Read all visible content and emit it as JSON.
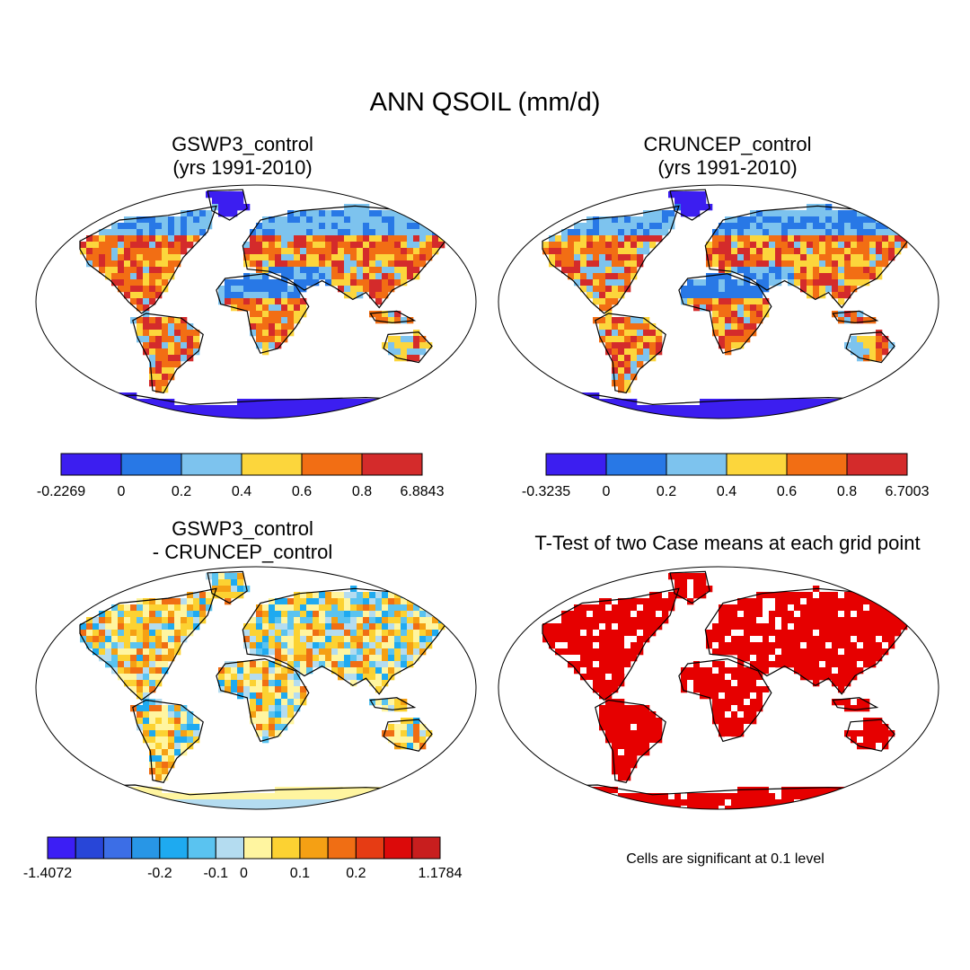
{
  "title": "ANN QSOIL (mm/d)",
  "panels": {
    "p1": {
      "title_line1": "GSWP3_control",
      "title_line2": "(yrs 1991-2010)"
    },
    "p2": {
      "title_line1": "CRUNCEP_control",
      "title_line2": "(yrs 1991-2010)"
    },
    "p3": {
      "title_line1": "GSWP3_control",
      "title_line2": "- CRUNCEP_control"
    },
    "p4": {
      "title_line1": "T-Test of two Case means at each grid point"
    }
  },
  "colorbars": {
    "cb1": {
      "colors": [
        "#3c1ef0",
        "#2878e6",
        "#7dc3ee",
        "#fcd63c",
        "#f26e14",
        "#d42b2b"
      ],
      "labels": [
        "-0.2269",
        "0",
        "0.2",
        "0.4",
        "0.6",
        "0.8",
        "6.8843"
      ]
    },
    "cb2": {
      "colors": [
        "#3c1ef0",
        "#2878e6",
        "#7dc3ee",
        "#fcd63c",
        "#f26e14",
        "#d42b2b"
      ],
      "labels": [
        "-0.3235",
        "0",
        "0.2",
        "0.4",
        "0.6",
        "0.8",
        "6.7003"
      ]
    },
    "cb3": {
      "colors": [
        "#3c1ef5",
        "#2846d8",
        "#3c6ee6",
        "#2896e6",
        "#1eaaf0",
        "#5ac3f0",
        "#b4dcf0",
        "#fff5a0",
        "#fcd232",
        "#f5a014",
        "#f06e14",
        "#e63c14",
        "#dc0a0a",
        "#c81e1e"
      ],
      "labels": [
        "-1.4072",
        "-0.2",
        "-0.1",
        "0",
        "0.1",
        "0.2",
        "1.1784"
      ]
    }
  },
  "significance_note": "Cells are significant at 0.1 level",
  "map_colors": {
    "ocean": "#ffffff",
    "outline": "#000000",
    "ttest": "#e60000"
  }
}
